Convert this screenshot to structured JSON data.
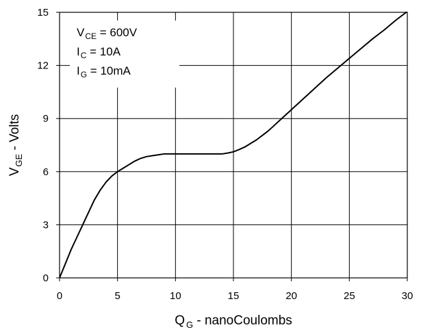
{
  "chart_data": {
    "type": "line",
    "title": "",
    "x_axis": {
      "label_main": "Q",
      "label_sub": "G",
      "label_rest": " - nanoCoulombs",
      "lim": [
        0,
        30
      ],
      "ticks": [
        0,
        5,
        10,
        15,
        20,
        25,
        30
      ],
      "tick_labels": [
        "0",
        "5",
        "10",
        "15",
        "20",
        "25",
        "30"
      ]
    },
    "y_axis": {
      "label_main": "V",
      "label_sub": "GE",
      "label_rest": " - Volts",
      "lim": [
        0,
        15
      ],
      "ticks": [
        0,
        3,
        6,
        9,
        12,
        15
      ],
      "tick_labels": [
        "0",
        "3",
        "6",
        "9",
        "12",
        "15"
      ]
    },
    "grid": true,
    "annotations": [
      {
        "main": "V",
        "sub": "CE",
        "rest": " = 600V"
      },
      {
        "main": "I",
        "sub": "C",
        "rest": " = 10A"
      },
      {
        "main": "I",
        "sub": "G",
        "rest": " = 10mA"
      }
    ],
    "series": [
      {
        "x": [
          0,
          0.5,
          1,
          1.5,
          2,
          2.5,
          3,
          3.5,
          4,
          4.5,
          5,
          5.5,
          6,
          6.5,
          7,
          7.5,
          8,
          8.5,
          9,
          10,
          11,
          12,
          13,
          13.5,
          14,
          14.5,
          15,
          15.5,
          16,
          16.5,
          17,
          17.5,
          18,
          18.5,
          19,
          20,
          21,
          22,
          23,
          24,
          25,
          26,
          27,
          28,
          29,
          30
        ],
        "y": [
          0,
          0.8,
          1.6,
          2.3,
          3.0,
          3.7,
          4.4,
          4.95,
          5.4,
          5.75,
          6.0,
          6.2,
          6.4,
          6.6,
          6.75,
          6.85,
          6.9,
          6.95,
          7.0,
          7.0,
          7.0,
          7.0,
          7.0,
          7.0,
          7.0,
          7.05,
          7.12,
          7.25,
          7.4,
          7.6,
          7.8,
          8.05,
          8.3,
          8.6,
          8.9,
          9.5,
          10.1,
          10.7,
          11.3,
          11.85,
          12.4,
          12.95,
          13.5,
          14.0,
          14.55,
          15.05
        ]
      }
    ]
  }
}
